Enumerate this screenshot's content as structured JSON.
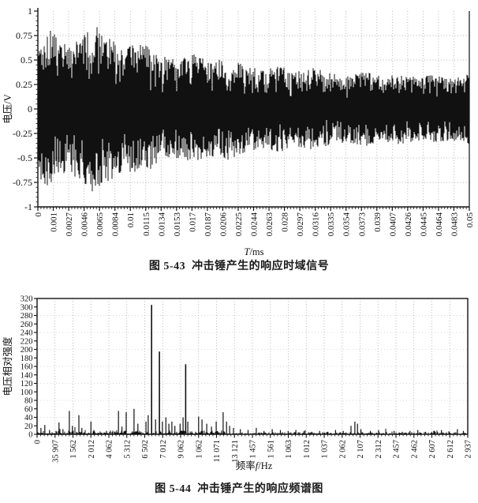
{
  "figure1": {
    "caption": "图 5-43  冲击锤产生的响应时域信号"
  },
  "figure2": {
    "caption": "图 5-44  冲击锤产生的响应频谱图"
  },
  "ink_color": "#111111",
  "grid_color": "#9a9a9a",
  "chart_data": [
    {
      "type": "line",
      "title": "图 5-43  冲击锤产生的响应时域信号",
      "description": "dense decaying random vibration waveform (impact hammer time-domain response)",
      "xlabel": "T/ms",
      "xlabel_parts": [
        {
          "t": "T",
          "i": true
        },
        {
          "t": "/ms",
          "i": false
        }
      ],
      "ylabel": "电压/V",
      "ylim": [
        -1,
        1
      ],
      "grid": true,
      "y_ticks": [
        "1",
        "0.75",
        "0.5",
        "0.25",
        "0",
        "-0.25",
        "-0.5",
        "-0.75",
        "-1"
      ],
      "x_tick_labels": [
        "0",
        "0.001",
        "0.0027",
        "0.0046",
        "0.0065",
        "0.0084",
        "0.01",
        "0.0115",
        "0.0134",
        "0.0153",
        "0.017",
        "0.0187",
        "0.0206",
        "0.0225",
        "0.0244",
        "0.0263",
        "0.028",
        "0.0297",
        "0.0316",
        "0.0335",
        "0.0354",
        "0.0373",
        "0.039",
        "0.0407",
        "0.0426",
        "0.0445",
        "0.0464",
        "0.0483",
        "0.05"
      ],
      "envelope": [
        [
          0,
          0.72
        ],
        [
          0.03,
          0.8
        ],
        [
          0.07,
          0.66
        ],
        [
          0.1,
          0.72
        ],
        [
          0.13,
          0.86
        ],
        [
          0.17,
          0.72
        ],
        [
          0.2,
          0.62
        ],
        [
          0.24,
          0.68
        ],
        [
          0.28,
          0.55
        ],
        [
          0.32,
          0.5
        ],
        [
          0.36,
          0.56
        ],
        [
          0.4,
          0.48
        ],
        [
          0.44,
          0.52
        ],
        [
          0.48,
          0.44
        ],
        [
          0.52,
          0.4
        ],
        [
          0.56,
          0.44
        ],
        [
          0.6,
          0.38
        ],
        [
          0.64,
          0.42
        ],
        [
          0.68,
          0.36
        ],
        [
          0.72,
          0.34
        ],
        [
          0.76,
          0.38
        ],
        [
          0.8,
          0.33
        ],
        [
          0.84,
          0.36
        ],
        [
          0.88,
          0.32
        ],
        [
          0.92,
          0.35
        ],
        [
          0.96,
          0.32
        ],
        [
          1.0,
          0.36
        ]
      ]
    },
    {
      "type": "bar",
      "title": "图 5-44  冲击锤产生的响应频谱图",
      "description": "frequency spectrum of impact hammer response; narrow spectral lines",
      "xlabel": "频率f/Hz",
      "xlabel_parts": [
        {
          "t": "频率",
          "i": false
        },
        {
          "t": "f",
          "i": true
        },
        {
          "t": "/Hz",
          "i": false
        }
      ],
      "ylabel": "电压相对强度",
      "ylim": [
        0,
        320
      ],
      "grid": true,
      "y_ticks": [
        "320",
        "300",
        "280",
        "260",
        "240",
        "220",
        "200",
        "180",
        "160",
        "140",
        "120",
        "100",
        "80",
        "60",
        "40",
        "20",
        "0"
      ],
      "x_tick_labels": [
        "0",
        "35 907",
        "1 562",
        "2 012",
        "4 062",
        "5 312",
        "6 502",
        "7 012",
        "9 062",
        "1 062",
        "11 071",
        "13 121",
        "1 457",
        "1 561",
        "1 063",
        "1 012",
        "1 037",
        "2 062",
        "2 107",
        "2 312",
        "2 457",
        "2 462",
        "2 607",
        "2 612",
        "2 937"
      ],
      "peaks_x_fraction_value": [
        [
          0.009,
          15
        ],
        [
          0.018,
          22
        ],
        [
          0.029,
          10
        ],
        [
          0.051,
          28
        ],
        [
          0.06,
          12
        ],
        [
          0.075,
          55
        ],
        [
          0.082,
          20
        ],
        [
          0.097,
          45
        ],
        [
          0.104,
          15
        ],
        [
          0.125,
          30
        ],
        [
          0.132,
          10
        ],
        [
          0.161,
          8
        ],
        [
          0.189,
          55
        ],
        [
          0.197,
          18
        ],
        [
          0.207,
          52
        ],
        [
          0.225,
          60
        ],
        [
          0.234,
          25
        ],
        [
          0.253,
          30
        ],
        [
          0.258,
          45
        ],
        [
          0.266,
          305
        ],
        [
          0.275,
          35
        ],
        [
          0.284,
          195
        ],
        [
          0.291,
          30
        ],
        [
          0.299,
          40
        ],
        [
          0.306,
          25
        ],
        [
          0.313,
          30
        ],
        [
          0.32,
          20
        ],
        [
          0.332,
          25
        ],
        [
          0.339,
          40
        ],
        [
          0.345,
          165
        ],
        [
          0.35,
          30
        ],
        [
          0.375,
          42
        ],
        [
          0.383,
          35
        ],
        [
          0.394,
          25
        ],
        [
          0.405,
          18
        ],
        [
          0.416,
          30
        ],
        [
          0.432,
          52
        ],
        [
          0.44,
          30
        ],
        [
          0.447,
          20
        ],
        [
          0.456,
          15
        ],
        [
          0.472,
          12
        ],
        [
          0.49,
          10
        ],
        [
          0.509,
          15
        ],
        [
          0.527,
          8
        ],
        [
          0.546,
          12
        ],
        [
          0.565,
          10
        ],
        [
          0.583,
          8
        ],
        [
          0.601,
          10
        ],
        [
          0.62,
          8
        ],
        [
          0.638,
          6
        ],
        [
          0.656,
          8
        ],
        [
          0.675,
          6
        ],
        [
          0.693,
          10
        ],
        [
          0.711,
          8
        ],
        [
          0.729,
          20
        ],
        [
          0.738,
          30
        ],
        [
          0.744,
          25
        ],
        [
          0.752,
          12
        ],
        [
          0.774,
          8
        ],
        [
          0.793,
          10
        ],
        [
          0.811,
          6
        ],
        [
          0.829,
          8
        ],
        [
          0.848,
          6
        ],
        [
          0.866,
          8
        ],
        [
          0.884,
          10
        ],
        [
          0.902,
          6
        ],
        [
          0.921,
          8
        ],
        [
          0.939,
          10
        ],
        [
          0.957,
          6
        ],
        [
          0.976,
          12
        ],
        [
          0.99,
          8
        ]
      ]
    }
  ]
}
